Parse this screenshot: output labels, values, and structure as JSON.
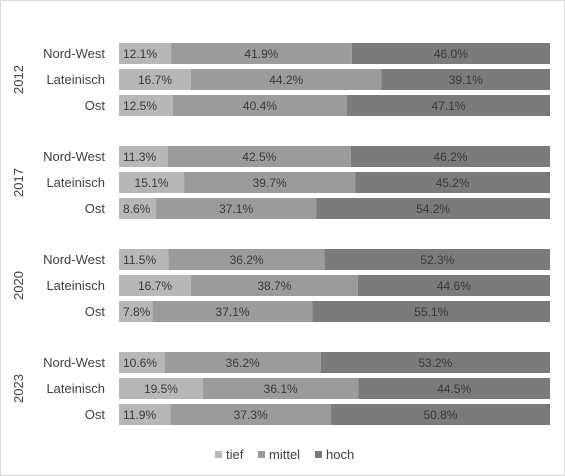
{
  "chart_data": {
    "type": "bar",
    "stacked": true,
    "percent": true,
    "orientation": "horizontal",
    "legend_position": "bottom",
    "grid": false,
    "colors": {
      "tief": "#b7b7b7",
      "mittel": "#9b9b9b",
      "hoch": "#7b7b7b"
    },
    "legend": [
      "tief",
      "mittel",
      "hoch"
    ],
    "groups": [
      {
        "year": "2012",
        "rows": [
          {
            "label": "Nord-West",
            "values": [
              12.1,
              41.9,
              46.0
            ],
            "texts": [
              "12.1%",
              "41.9%",
              "46.0%"
            ]
          },
          {
            "label": "Lateinisch",
            "values": [
              16.7,
              44.2,
              39.1
            ],
            "texts": [
              "16.7%",
              "44.2%",
              "39.1%"
            ]
          },
          {
            "label": "Ost",
            "values": [
              12.5,
              40.4,
              47.1
            ],
            "texts": [
              "12.5%",
              "40.4%",
              "47.1%"
            ]
          }
        ]
      },
      {
        "year": "2017",
        "rows": [
          {
            "label": "Nord-West",
            "values": [
              11.3,
              42.5,
              46.2
            ],
            "texts": [
              "11.3%",
              "42.5%",
              "46.2%"
            ]
          },
          {
            "label": "Lateinisch",
            "values": [
              15.1,
              39.7,
              45.2
            ],
            "texts": [
              "15.1%",
              "39.7%",
              "45.2%"
            ]
          },
          {
            "label": "Ost",
            "values": [
              8.6,
              37.1,
              54.2
            ],
            "texts": [
              "8.6%",
              "37.1%",
              "54.2%"
            ]
          }
        ]
      },
      {
        "year": "2020",
        "rows": [
          {
            "label": "Nord-West",
            "values": [
              11.5,
              36.2,
              52.3
            ],
            "texts": [
              "11.5%",
              "36.2%",
              "52.3%"
            ]
          },
          {
            "label": "Lateinisch",
            "values": [
              16.7,
              38.7,
              44.6
            ],
            "texts": [
              "16.7%",
              "38.7%",
              "44.6%"
            ]
          },
          {
            "label": "Ost",
            "values": [
              7.8,
              37.1,
              55.1
            ],
            "texts": [
              "7.8%",
              "37.1%",
              "55.1%"
            ]
          }
        ]
      },
      {
        "year": "2023",
        "rows": [
          {
            "label": "Nord-West",
            "values": [
              10.6,
              36.2,
              53.2
            ],
            "texts": [
              "10.6%",
              "36.2%",
              "53.2%"
            ]
          },
          {
            "label": "Lateinisch",
            "values": [
              19.5,
              36.1,
              44.5
            ],
            "texts": [
              "19.5%",
              "36.1%",
              "44.5%"
            ]
          },
          {
            "label": "Ost",
            "values": [
              11.9,
              37.3,
              50.8
            ],
            "texts": [
              "11.9%",
              "37.3%",
              "50.8%"
            ]
          }
        ]
      }
    ]
  }
}
